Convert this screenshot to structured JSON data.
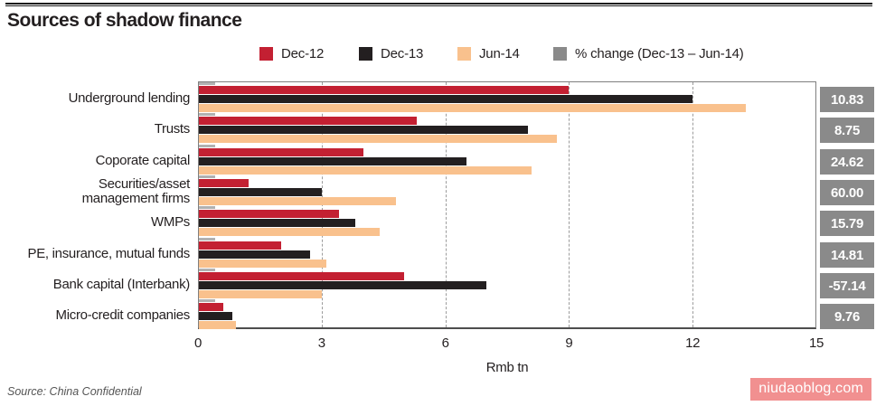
{
  "header": {
    "title": "Sources of shadow finance"
  },
  "legend": {
    "items": [
      {
        "label": "Dec-12",
        "color": "#c32032"
      },
      {
        "label": "Dec-13",
        "color": "#231f20"
      },
      {
        "label": "Jun-14",
        "color": "#f9c18d"
      },
      {
        "label": "% change (Dec-13 – Jun-14)",
        "color": "#8a8a8a"
      }
    ]
  },
  "chart_data": {
    "type": "bar",
    "orientation": "horizontal",
    "title": "Sources of shadow finance",
    "xlabel": "Rmb tn",
    "xlim": [
      0,
      15
    ],
    "xticks": [
      0,
      3,
      6,
      9,
      12,
      15
    ],
    "grid": "vertical dashed lines at 3, 6, 9, 12",
    "legend_position": "top",
    "categories": [
      "Underground lending",
      "Trusts",
      "Coporate capital",
      "Securities/asset\nmanagement firms",
      "WMPs",
      "PE, insurance, mutual funds",
      "Bank capital (Interbank)",
      "Micro-credit companies"
    ],
    "series": [
      {
        "name": "Dec-12",
        "color": "#c32032",
        "values": [
          9.0,
          5.3,
          4.0,
          1.2,
          3.4,
          2.0,
          5.0,
          0.6
        ]
      },
      {
        "name": "Dec-13",
        "color": "#231f20",
        "values": [
          12.0,
          8.0,
          6.5,
          3.0,
          3.8,
          2.7,
          7.0,
          0.82
        ]
      },
      {
        "name": "Jun-14",
        "color": "#f9c18d",
        "values": [
          13.3,
          8.7,
          8.1,
          4.8,
          4.4,
          3.1,
          3.0,
          0.9
        ]
      }
    ],
    "pct_change_labels": [
      "10.83",
      "8.75",
      "24.62",
      "60.00",
      "15.79",
      "14.81",
      "-57.14",
      "9.76"
    ],
    "pct_marker_units": 0.4,
    "pct_marker_color": "#b1b1b1",
    "pct_box_color": "#8a8a8a"
  },
  "footer": {
    "source": "Source: China Confidential",
    "watermark": "niudaoblog.com"
  }
}
